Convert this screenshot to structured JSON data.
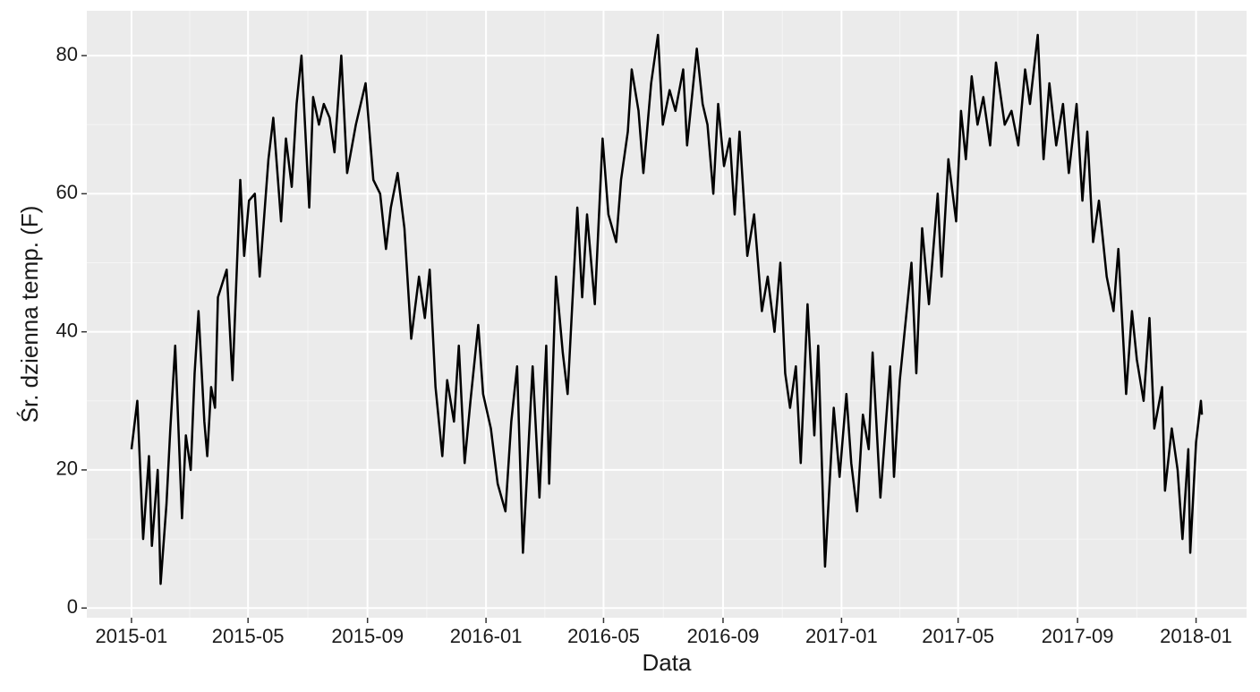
{
  "chart_data": {
    "type": "line",
    "x_label": "Data",
    "y_label": "Śr. dzienna temp. (F)",
    "x": [
      0,
      6,
      12,
      18,
      21,
      27,
      30,
      36,
      40,
      45,
      52,
      56,
      61,
      65,
      69,
      75,
      78,
      82,
      86,
      89,
      98,
      104,
      112,
      116,
      121,
      127,
      132,
      141,
      146,
      154,
      159,
      165,
      170,
      175,
      183,
      187,
      193,
      198,
      204,
      209,
      216,
      222,
      231,
      241,
      249,
      256,
      262,
      267,
      274,
      281,
      288,
      296,
      302,
      307,
      313,
      320,
      325,
      332,
      337,
      343,
      349,
      357,
      362,
      370,
      377,
      385,
      391,
      397,
      403,
      413,
      420,
      427,
      430,
      437,
      444,
      449,
      459,
      464,
      469,
      477,
      485,
      491,
      499,
      504,
      511,
      515,
      522,
      527,
      535,
      542,
      547,
      554,
      560,
      568,
      572,
      582,
      588,
      593,
      599,
      604,
      610,
      616,
      621,
      626,
      634,
      641,
      649,
      655,
      662,
      668,
      673,
      678,
      684,
      689,
      696,
      703,
      707,
      714,
      723,
      729,
      736,
      741,
      747,
      753,
      759,
      763,
      771,
      781,
      785,
      791,
      803,
      808,
      814,
      821,
      830,
      834,
      841,
      849,
      854,
      859,
      865,
      871,
      877,
      884,
      890,
      899,
      906,
      913,
      920,
      925,
      933,
      939,
      945,
      952,
      959,
      965,
      973,
      979,
      984,
      990,
      996,
      1004,
      1011,
      1016,
      1024,
      1030,
      1035,
      1042,
      1048,
      1053,
      1061,
      1064,
      1071,
      1077,
      1082,
      1088,
      1090,
      1096,
      1101,
      1102
    ],
    "series": [
      {
        "color": "#000000",
        "values": [
          23,
          30,
          10,
          22,
          9,
          20,
          3.5,
          15,
          26,
          38,
          13,
          25,
          20,
          34,
          43,
          27,
          22,
          32,
          29,
          45,
          49,
          33,
          62,
          51,
          59,
          60,
          48,
          65,
          71,
          56,
          68,
          61,
          73,
          80,
          58,
          74,
          70,
          73,
          71,
          66,
          80,
          63,
          70,
          76,
          62,
          60,
          52,
          58,
          63,
          55,
          39,
          48,
          42,
          49,
          32,
          22,
          33,
          27,
          38,
          21,
          30,
          41,
          31,
          26,
          18,
          14,
          27,
          35,
          8,
          35,
          16,
          38,
          18,
          48,
          37,
          31,
          58,
          45,
          57,
          44,
          68,
          57,
          53,
          62,
          69,
          78,
          72,
          63,
          76,
          83,
          70,
          75,
          72,
          78,
          67,
          81,
          73,
          70,
          60,
          73,
          64,
          68,
          57,
          69,
          51,
          57,
          43,
          48,
          40,
          50,
          34,
          29,
          35,
          21,
          44,
          25,
          38,
          6,
          29,
          19,
          31,
          21,
          14,
          28,
          23,
          37,
          16,
          35,
          19,
          33,
          50,
          34,
          55,
          44,
          60,
          48,
          65,
          56,
          72,
          65,
          77,
          70,
          74,
          67,
          79,
          70,
          72,
          67,
          78,
          73,
          83,
          65,
          76,
          67,
          73,
          63,
          73,
          59,
          69,
          53,
          59,
          48,
          43,
          52,
          31,
          43,
          36,
          30,
          42,
          26,
          32,
          17,
          26,
          20,
          10,
          23,
          8,
          24,
          30,
          28
        ]
      }
    ],
    "xlim": [
      -46,
      1148
    ],
    "ylim": [
      -1.4,
      86.5
    ],
    "xticks": [
      {
        "value": 0,
        "label": "2015-01"
      },
      {
        "value": 120,
        "label": "2015-05"
      },
      {
        "value": 243,
        "label": "2015-09"
      },
      {
        "value": 365,
        "label": "2016-01"
      },
      {
        "value": 486,
        "label": "2016-05"
      },
      {
        "value": 609,
        "label": "2016-09"
      },
      {
        "value": 731,
        "label": "2017-01"
      },
      {
        "value": 851,
        "label": "2017-05"
      },
      {
        "value": 974,
        "label": "2017-09"
      },
      {
        "value": 1096,
        "label": "2018-01"
      }
    ],
    "yticks": [
      0,
      20,
      40,
      60,
      80
    ],
    "grid": true
  }
}
